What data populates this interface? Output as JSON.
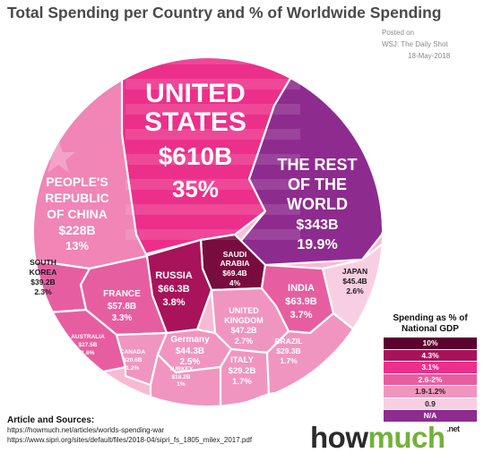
{
  "title": "Total Spending per Country and % of Worldwide Spending",
  "posted": {
    "line1": "Posted on",
    "line2": "WSJ: The Daily Shot",
    "line3": "18-May-2018"
  },
  "chart_data": {
    "type": "voronoi-treemap",
    "cells": [
      {
        "name": "UNITED STATES",
        "value_label": "$610B",
        "share_label": "35%",
        "value": 610,
        "share": 35,
        "gdp_band": "3.1%",
        "color": "#ec2f8a"
      },
      {
        "name": "THE REST OF THE WORLD",
        "value_label": "$343B",
        "share_label": "19.9%",
        "value": 343,
        "share": 19.9,
        "gdp_band": "N/A",
        "color": "#8e2b8f"
      },
      {
        "name": "PEOPLE'S REPUBLIC OF CHINA",
        "value_label": "$228B",
        "share_label": "13%",
        "value": 228,
        "share": 13,
        "gdp_band": "1.9-1.2%",
        "color": "#f085b6"
      },
      {
        "name": "SAUDI ARABIA",
        "value_label": "$69.4B",
        "share_label": "4%",
        "value": 69.4,
        "share": 4,
        "gdp_band": "10%",
        "color": "#780c3f"
      },
      {
        "name": "RUSSIA",
        "value_label": "$66.3B",
        "share_label": "3.8%",
        "value": 66.3,
        "share": 3.8,
        "gdp_band": "4.3%",
        "color": "#a81359"
      },
      {
        "name": "INDIA",
        "value_label": "$63.9B",
        "share_label": "3.7%",
        "value": 63.9,
        "share": 3.7,
        "gdp_band": "2.6-2%",
        "color": "#e75ea0"
      },
      {
        "name": "FRANCE",
        "value_label": "$57.8B",
        "share_label": "3.3%",
        "value": 57.8,
        "share": 3.3,
        "gdp_band": "2.6-2%",
        "color": "#e75ea0"
      },
      {
        "name": "UNITED KINGDOM",
        "value_label": "$47.2B",
        "share_label": "2.7%",
        "value": 47.2,
        "share": 2.7,
        "gdp_band": "1.9-1.2%",
        "color": "#f095c0"
      },
      {
        "name": "JAPAN",
        "value_label": "$45.4B",
        "share_label": "2.6%",
        "value": 45.4,
        "share": 2.6,
        "gdp_band": "0.9",
        "color": "#f8cfe2"
      },
      {
        "name": "Germany",
        "value_label": "$44.3B",
        "share_label": "2.5%",
        "value": 44.3,
        "share": 2.5,
        "gdp_band": "1.9-1.2%",
        "color": "#f095c0"
      },
      {
        "name": "SOUTH KOREA",
        "value_label": "$39.2B",
        "share_label": "2.3%",
        "value": 39.2,
        "share": 2.3,
        "gdp_band": "2.6-2%",
        "color": "#e75ea0"
      },
      {
        "name": "AUSTRALIA",
        "value_label": "$27.5B",
        "share_label": "1.6%",
        "value": 27.5,
        "share": 1.6,
        "gdp_band": "2.6-2%",
        "color": "#e75ea0"
      },
      {
        "name": "ITALY",
        "value_label": "$29.2B",
        "share_label": "1.7%",
        "value": 29.2,
        "share": 1.7,
        "gdp_band": "1.9-1.2%",
        "color": "#f095c0"
      },
      {
        "name": "BRAZIL",
        "value_label": "$29.3B",
        "share_label": "1.7%",
        "value": 29.3,
        "share": 1.7,
        "gdp_band": "1.9-1.2%",
        "color": "#f095c0"
      },
      {
        "name": "CANADA",
        "value_label": "$20.6B",
        "share_label": "1.2%",
        "value": 20.6,
        "share": 1.2,
        "gdp_band": "1.9-1.2%",
        "color": "#f095c0"
      },
      {
        "name": "TURKEY",
        "value_label": "$18.2B",
        "share_label": "1%",
        "value": 18.2,
        "share": 1,
        "gdp_band": "1.9-1.2%",
        "color": "#f095c0"
      }
    ],
    "legend": {
      "title": "Spending as % of National GDP",
      "items": [
        {
          "label": "10%",
          "color": "#5c0030"
        },
        {
          "label": "4.3%",
          "color": "#a81359"
        },
        {
          "label": "3.1%",
          "color": "#ec2f8a"
        },
        {
          "label": "2.6-2%",
          "color": "#e75ea0"
        },
        {
          "label": "1.9-1.2%",
          "color": "#f095c0"
        },
        {
          "label": "0.9",
          "color": "#f8cfe2"
        },
        {
          "label": "N/A",
          "color": "#8e2b8f"
        }
      ]
    }
  },
  "sources": {
    "heading": "Article and Sources:",
    "links": [
      "https://howmuch.net/articles/worlds-spending-war",
      "https://www.sipri.org/sites/default/files/2018-04/sipri_fs_1805_milex_2017.pdf"
    ]
  },
  "brand": {
    "part1": "how",
    "part2": "much",
    "tld": ".net"
  }
}
